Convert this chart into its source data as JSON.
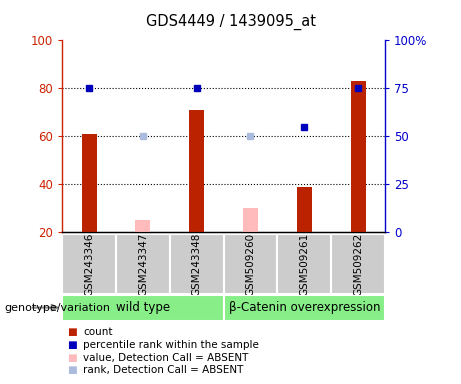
{
  "title": "GDS4449 / 1439095_at",
  "samples": [
    "GSM243346",
    "GSM243347",
    "GSM243348",
    "GSM509260",
    "GSM509261",
    "GSM509262"
  ],
  "count_present": [
    61,
    null,
    71,
    null,
    39,
    83
  ],
  "count_absent": [
    null,
    25,
    null,
    30,
    null,
    null
  ],
  "rank_present": [
    75,
    null,
    75,
    null,
    55,
    75
  ],
  "rank_absent": [
    null,
    50,
    null,
    50,
    null,
    null
  ],
  "ylim_left": [
    20,
    100
  ],
  "ylim_right": [
    0,
    100
  ],
  "yticks_left": [
    20,
    40,
    60,
    80,
    100
  ],
  "yticks_right": [
    0,
    25,
    50,
    75,
    100
  ],
  "yticklabels_right": [
    "0",
    "25",
    "50",
    "75",
    "100%"
  ],
  "left_axis_color": "#cc2200",
  "right_axis_color": "#0000cc",
  "count_present_color": "#bb2200",
  "count_absent_color": "#ffbbbb",
  "rank_present_color": "#0000bb",
  "rank_absent_color": "#aabbdd",
  "genotype_label": "genotype/variation",
  "wt_label": "wild type",
  "bc_label": "β-Catenin overexpression",
  "group_bg_wt": "#88ee88",
  "group_bg_bc": "#88ee88",
  "label_area_bg": "#cccccc",
  "legend_items": [
    {
      "label": "count",
      "color": "#bb2200"
    },
    {
      "label": "percentile rank within the sample",
      "color": "#0000bb"
    },
    {
      "label": "value, Detection Call = ABSENT",
      "color": "#ffbbbb"
    },
    {
      "label": "rank, Detection Call = ABSENT",
      "color": "#aabbdd"
    }
  ]
}
